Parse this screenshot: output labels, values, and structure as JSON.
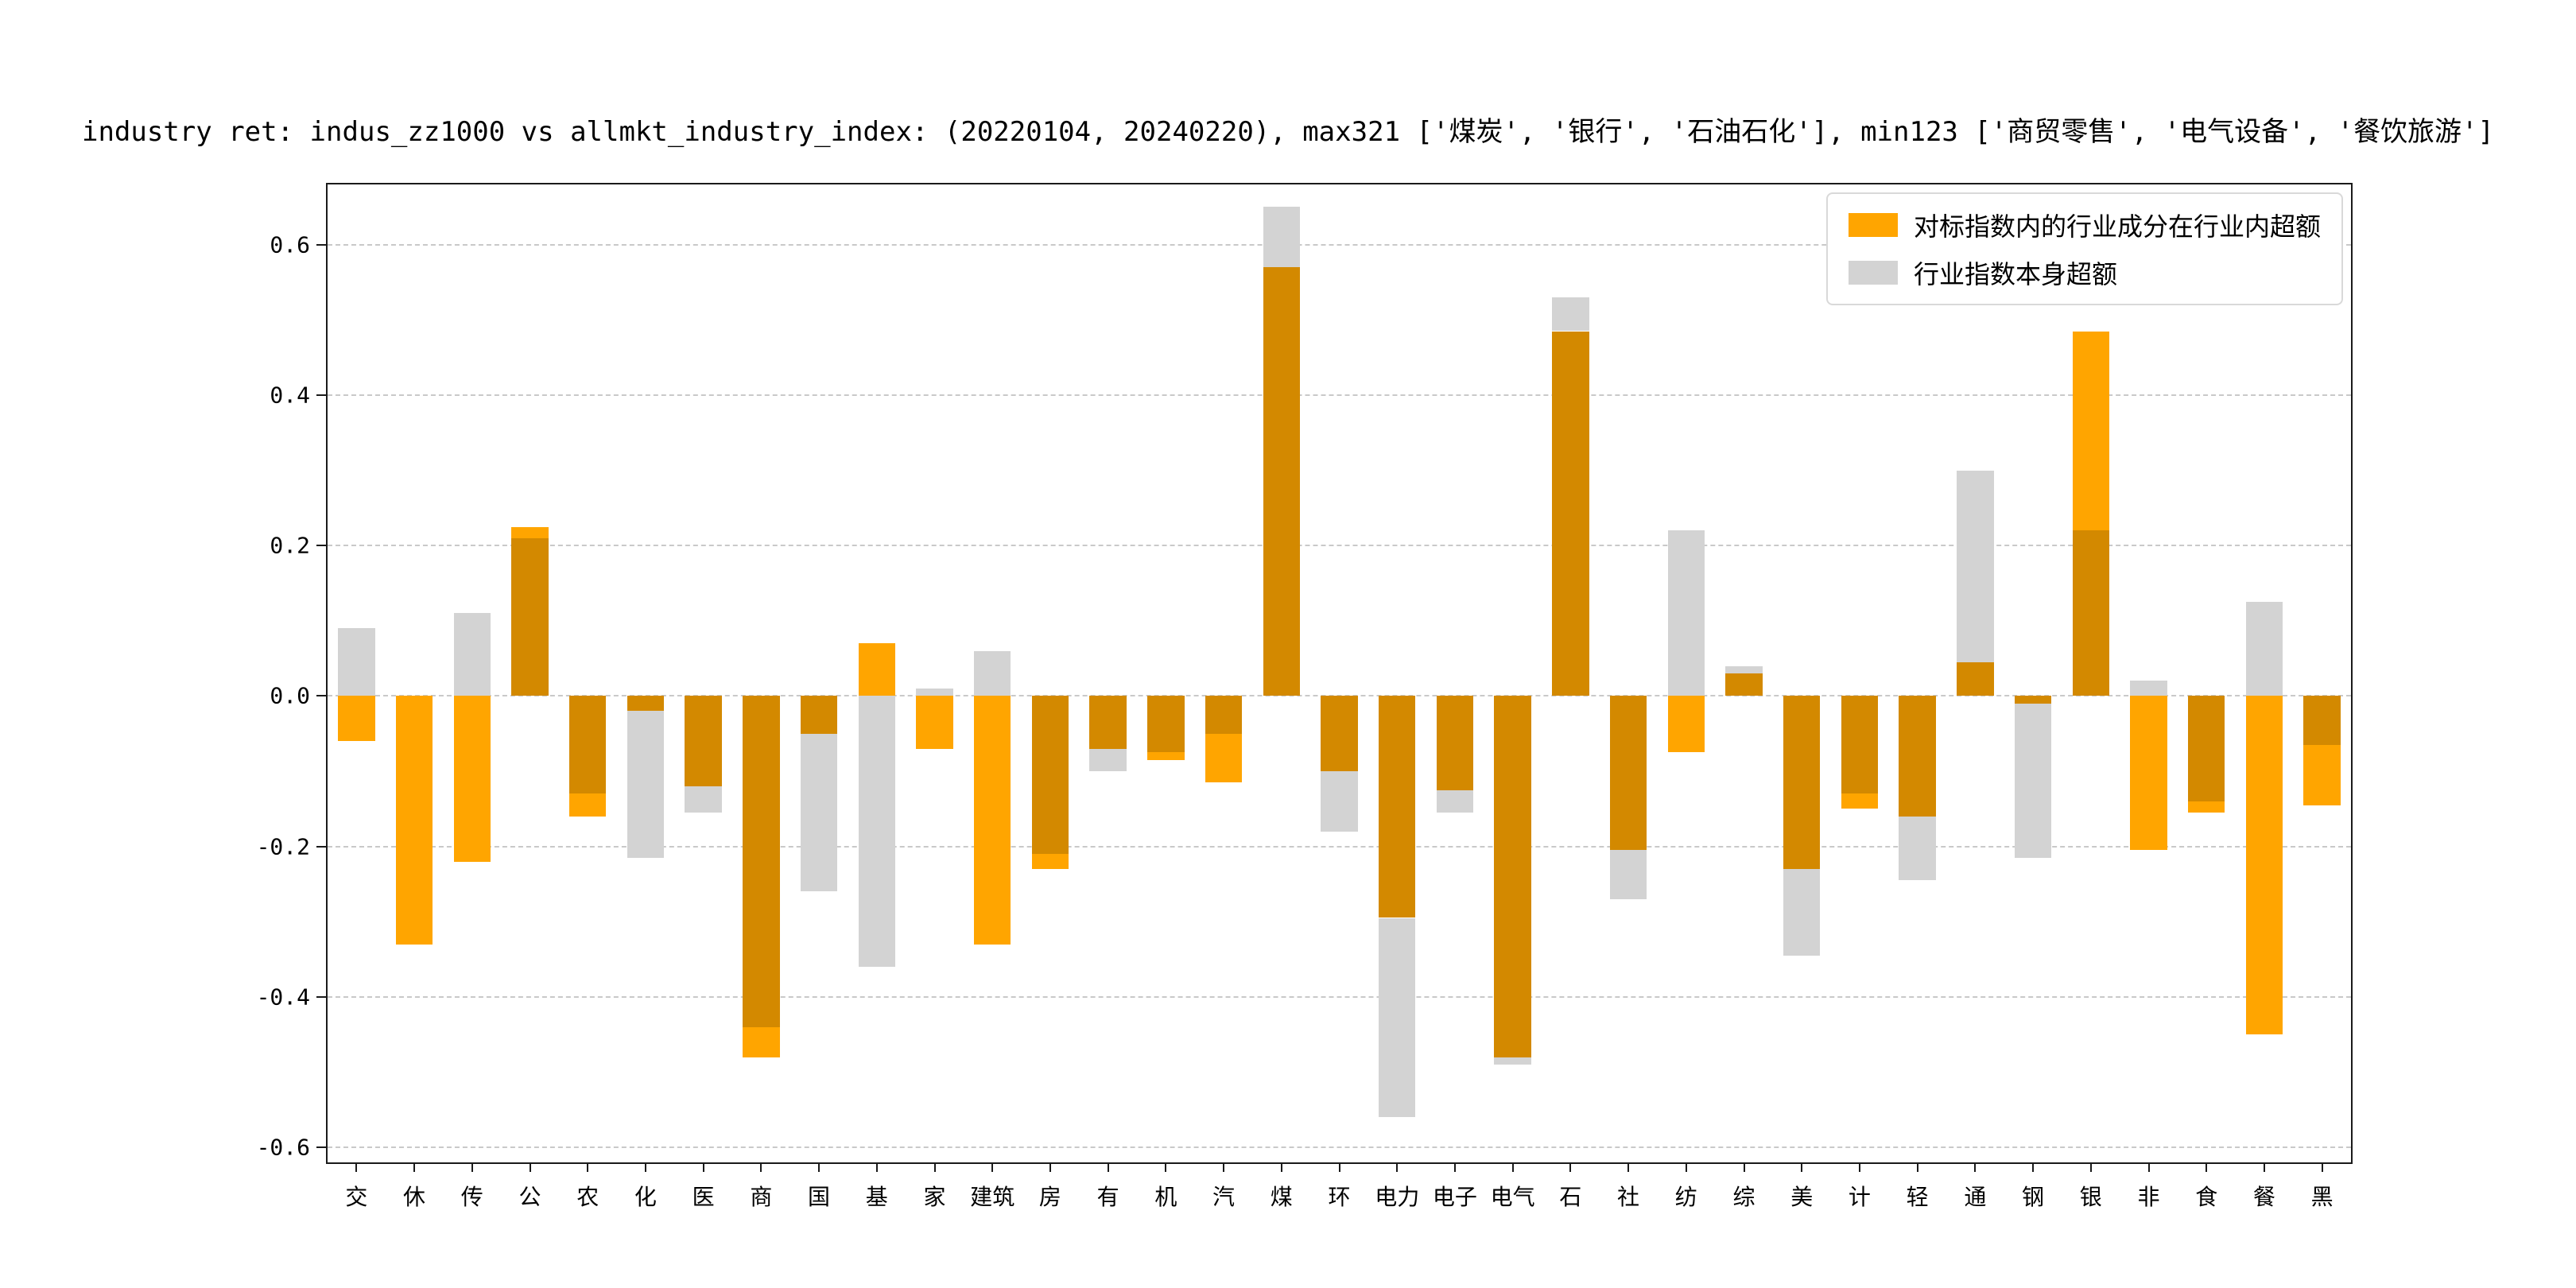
{
  "chart_data": {
    "type": "bar",
    "title": "industry ret: indus_zz1000 vs allmkt_industry_index: (20220104, 20240220), max321 ['煤炭', '银行', '石油石化'], min123 ['商贸零售', '电气设备', '餐饮旅游']",
    "categories": [
      "交",
      "休",
      "传",
      "公",
      "农",
      "化",
      "医",
      "商",
      "国",
      "基",
      "家",
      "建筑",
      "房",
      "有",
      "机",
      "汽",
      "煤",
      "环",
      "电力",
      "电子",
      "电气",
      "石",
      "社",
      "纺",
      "综",
      "美",
      "计",
      "轻",
      "通",
      "钢",
      "银",
      "非",
      "食",
      "餐",
      "黑"
    ],
    "series": [
      {
        "name": "对标指数内的行业成分在行业内超额",
        "color": "#FFA500",
        "values": [
          -0.06,
          -0.33,
          -0.22,
          0.225,
          -0.16,
          -0.02,
          -0.12,
          -0.48,
          -0.05,
          0.07,
          -0.07,
          -0.33,
          -0.23,
          -0.07,
          -0.085,
          -0.115,
          0.57,
          -0.1,
          -0.295,
          -0.125,
          -0.48,
          0.485,
          -0.205,
          -0.075,
          0.03,
          -0.23,
          -0.15,
          -0.16,
          0.045,
          -0.01,
          0.485,
          -0.205,
          -0.155,
          -0.45,
          -0.145
        ]
      },
      {
        "name": "行业指数本身超额",
        "color": "#D3D3D3",
        "values": [
          0.09,
          0.0,
          0.11,
          0.21,
          -0.13,
          -0.215,
          -0.155,
          -0.44,
          -0.26,
          -0.36,
          0.01,
          0.06,
          -0.21,
          -0.1,
          -0.075,
          -0.05,
          0.65,
          -0.18,
          -0.56,
          -0.155,
          -0.49,
          0.53,
          -0.27,
          0.22,
          0.04,
          -0.345,
          -0.13,
          -0.245,
          0.3,
          -0.215,
          0.22,
          0.02,
          -0.14,
          0.125,
          -0.065
        ]
      }
    ],
    "overlap_color": "#D38900",
    "yticks": [
      -0.6,
      -0.4,
      -0.2,
      0.0,
      0.2,
      0.4,
      0.6
    ],
    "ylim": [
      -0.62,
      0.68
    ],
    "grid": true,
    "grid_style": "dashed",
    "legend_position": "upper right",
    "background_color": "#ffffff"
  }
}
